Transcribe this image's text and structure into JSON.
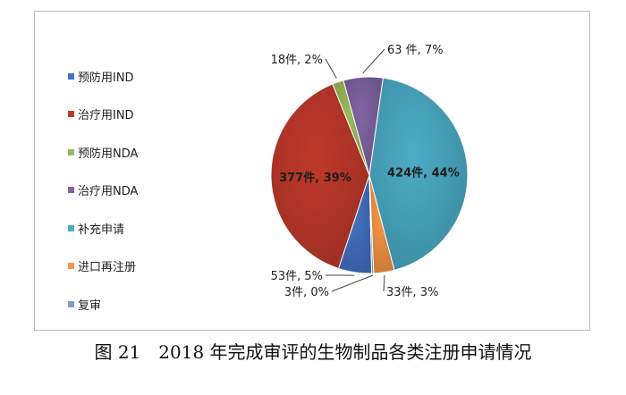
{
  "chart_data": {
    "type": "pie",
    "title": "",
    "categories": [
      "预防用IND",
      "治疗用IND",
      "预防用NDA",
      "治疗用NDA",
      "补充申请",
      "进口再注册",
      "复审"
    ],
    "values": [
      53,
      377,
      18,
      63,
      424,
      33,
      3
    ],
    "percent_labels": [
      "5%",
      "39%",
      "2%",
      "7%",
      "44%",
      "3%",
      "0%"
    ],
    "data_labels": [
      "53件, 5%",
      "377件, 39%",
      "18件, 2%",
      "63 件, 7%",
      "424件, 44%",
      "33件, 3%",
      "3件, 0%"
    ],
    "colors": [
      "#4472c4",
      "#c0392b",
      "#9bbb59",
      "#8064a2",
      "#4bacc6",
      "#f79646",
      "#7f9ec9"
    ],
    "legend_position": "left"
  },
  "caption": "图 21　2018 年完成审评的生物制品各类注册申请情况"
}
